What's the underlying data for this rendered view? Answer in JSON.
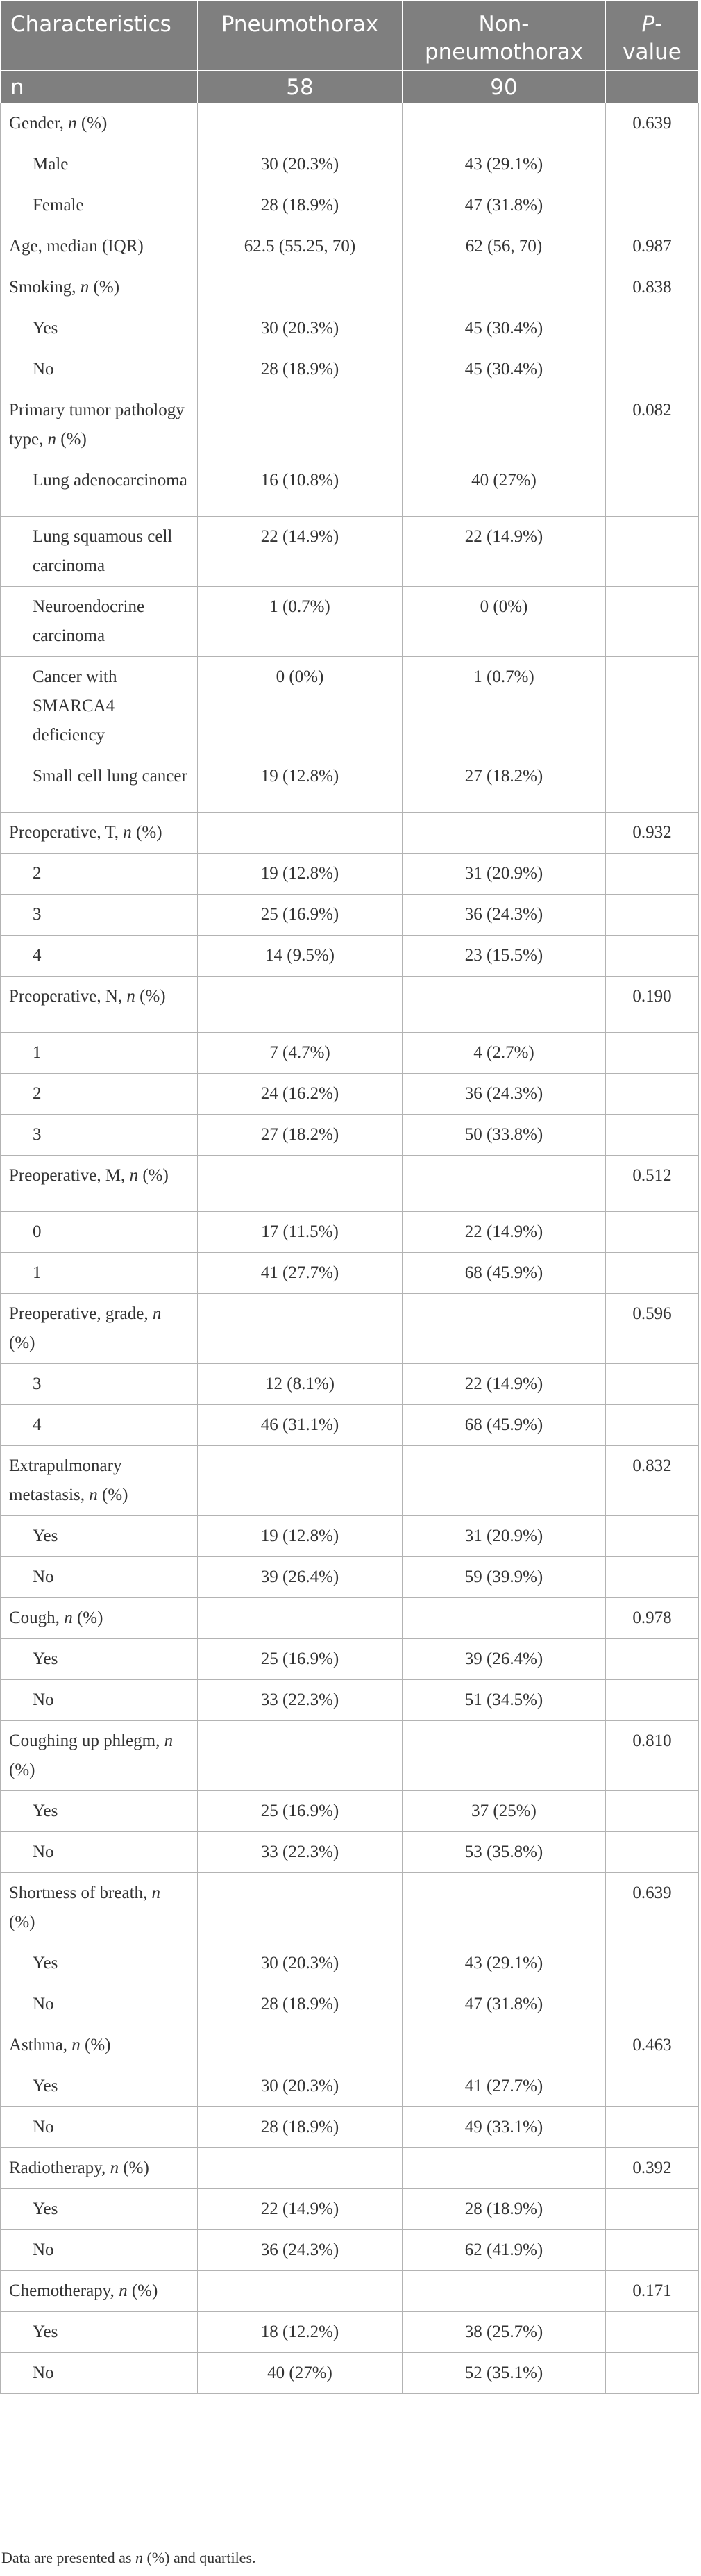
{
  "table": {
    "headers": {
      "characteristics": "Characteristics",
      "pneumothorax": "Pneumothorax",
      "non_pneumothorax": "Non-pneumothorax",
      "p_value_italic": "P",
      "p_value_rest": "-value"
    },
    "n_row": {
      "label": "n",
      "pneumothorax": "58",
      "non_pneumothorax": "90"
    },
    "rows": [
      {
        "type": "group",
        "label": "Gender, ",
        "label_italic": "n",
        "label_suffix": " (%)",
        "pneumothorax": "",
        "non_pneumothorax": "",
        "p": "0.639",
        "height": "r1"
      },
      {
        "type": "sub",
        "label": "Male",
        "pneumothorax": "30 (20.3%)",
        "non_pneumothorax": "43 (29.1%)",
        "p": "",
        "height": "r1"
      },
      {
        "type": "sub",
        "label": "Female",
        "pneumothorax": "28 (18.9%)",
        "non_pneumothorax": "47 (31.8%)",
        "p": "",
        "height": "r1"
      },
      {
        "type": "group",
        "label": "Age, median (IQR)",
        "label_italic": "",
        "label_suffix": "",
        "pneumothorax": "62.5 (55.25, 70)",
        "non_pneumothorax": "62 (56, 70)",
        "p": "0.987",
        "height": "r1"
      },
      {
        "type": "group",
        "label": "Smoking, ",
        "label_italic": "n",
        "label_suffix": " (%)",
        "pneumothorax": "",
        "non_pneumothorax": "",
        "p": "0.838",
        "height": "r1"
      },
      {
        "type": "sub",
        "label": "Yes",
        "pneumothorax": "30 (20.3%)",
        "non_pneumothorax": "45 (30.4%)",
        "p": "",
        "height": "r1"
      },
      {
        "type": "sub",
        "label": "No",
        "pneumothorax": "28 (18.9%)",
        "non_pneumothorax": "45 (30.4%)",
        "p": "",
        "height": "r1"
      },
      {
        "type": "group",
        "label": "Primary tumor pathology type, ",
        "label_italic": "n",
        "label_suffix": " (%)",
        "pneumothorax": "",
        "non_pneumothorax": "",
        "p": "0.082",
        "height": "r2"
      },
      {
        "type": "sub",
        "label": "Lung adenocarcinoma",
        "pneumothorax": "16 (10.8%)",
        "non_pneumothorax": "40 (27%)",
        "p": "",
        "height": "r2"
      },
      {
        "type": "sub",
        "label": "Lung squamous cell carcinoma",
        "pneumothorax": "22 (14.9%)",
        "non_pneumothorax": "22 (14.9%)",
        "p": "",
        "height": "r2"
      },
      {
        "type": "sub",
        "label": "Neuroendocrine carcinoma",
        "pneumothorax": "1 (0.7%)",
        "non_pneumothorax": "0 (0%)",
        "p": "",
        "height": "r2"
      },
      {
        "type": "sub",
        "label": "Cancer with SMARCA4 deficiency",
        "pneumothorax": "0 (0%)",
        "non_pneumothorax": "1 (0.7%)",
        "p": "",
        "height": "r3"
      },
      {
        "type": "sub",
        "label": "Small cell lung cancer",
        "pneumothorax": "19 (12.8%)",
        "non_pneumothorax": "27 (18.2%)",
        "p": "",
        "height": "r2"
      },
      {
        "type": "group",
        "label": "Preoperative, T, ",
        "label_italic": "n",
        "label_suffix": " (%)",
        "pneumothorax": "",
        "non_pneumothorax": "",
        "p": "0.932",
        "height": "r1"
      },
      {
        "type": "sub",
        "label": "2",
        "pneumothorax": "19 (12.8%)",
        "non_pneumothorax": "31 (20.9%)",
        "p": "",
        "height": "r1"
      },
      {
        "type": "sub",
        "label": "3",
        "pneumothorax": "25 (16.9%)",
        "non_pneumothorax": "36 (24.3%)",
        "p": "",
        "height": "r1"
      },
      {
        "type": "sub",
        "label": "4",
        "pneumothorax": "14 (9.5%)",
        "non_pneumothorax": "23 (15.5%)",
        "p": "",
        "height": "r1"
      },
      {
        "type": "group",
        "label": "Preoperative, N, ",
        "label_italic": "n",
        "label_suffix": " (%)",
        "pneumothorax": "",
        "non_pneumothorax": "",
        "p": "0.190",
        "height": "r2"
      },
      {
        "type": "sub",
        "label": "1",
        "pneumothorax": "7 (4.7%)",
        "non_pneumothorax": "4 (2.7%)",
        "p": "",
        "height": "r1"
      },
      {
        "type": "sub",
        "label": "2",
        "pneumothorax": "24 (16.2%)",
        "non_pneumothorax": "36 (24.3%)",
        "p": "",
        "height": "r1"
      },
      {
        "type": "sub",
        "label": "3",
        "pneumothorax": "27 (18.2%)",
        "non_pneumothorax": "50 (33.8%)",
        "p": "",
        "height": "r1"
      },
      {
        "type": "group",
        "label": "Preoperative, M, ",
        "label_italic": "n",
        "label_suffix": " (%)",
        "pneumothorax": "",
        "non_pneumothorax": "",
        "p": "0.512",
        "height": "r2"
      },
      {
        "type": "sub",
        "label": "0",
        "pneumothorax": "17 (11.5%)",
        "non_pneumothorax": "22 (14.9%)",
        "p": "",
        "height": "r1"
      },
      {
        "type": "sub",
        "label": "1",
        "pneumothorax": "41 (27.7%)",
        "non_pneumothorax": "68 (45.9%)",
        "p": "",
        "height": "r1"
      },
      {
        "type": "group",
        "label": "Preoperative, grade, ",
        "label_italic": "n",
        "label_suffix": " (%)",
        "pneumothorax": "",
        "non_pneumothorax": "",
        "p": "0.596",
        "height": "r2"
      },
      {
        "type": "sub",
        "label": "3",
        "pneumothorax": "12 (8.1%)",
        "non_pneumothorax": "22 (14.9%)",
        "p": "",
        "height": "r1"
      },
      {
        "type": "sub",
        "label": "4",
        "pneumothorax": "46 (31.1%)",
        "non_pneumothorax": "68 (45.9%)",
        "p": "",
        "height": "r1"
      },
      {
        "type": "group",
        "label": "Extrapulmonary metastasis, ",
        "label_italic": "n",
        "label_suffix": " (%)",
        "pneumothorax": "",
        "non_pneumothorax": "",
        "p": "0.832",
        "height": "r2"
      },
      {
        "type": "sub",
        "label": "Yes",
        "pneumothorax": "19 (12.8%)",
        "non_pneumothorax": "31 (20.9%)",
        "p": "",
        "height": "r1"
      },
      {
        "type": "sub",
        "label": "No",
        "pneumothorax": "39 (26.4%)",
        "non_pneumothorax": "59 (39.9%)",
        "p": "",
        "height": "r1"
      },
      {
        "type": "group",
        "label": "Cough, ",
        "label_italic": "n",
        "label_suffix": " (%)",
        "pneumothorax": "",
        "non_pneumothorax": "",
        "p": "0.978",
        "height": "r1"
      },
      {
        "type": "sub",
        "label": "Yes",
        "pneumothorax": "25 (16.9%)",
        "non_pneumothorax": "39 (26.4%)",
        "p": "",
        "height": "r1"
      },
      {
        "type": "sub",
        "label": "No",
        "pneumothorax": "33 (22.3%)",
        "non_pneumothorax": "51 (34.5%)",
        "p": "",
        "height": "r1"
      },
      {
        "type": "group",
        "label": "Coughing up phlegm, ",
        "label_italic": "n",
        "label_suffix": " (%)",
        "pneumothorax": "",
        "non_pneumothorax": "",
        "p": "0.810",
        "height": "r2"
      },
      {
        "type": "sub",
        "label": "Yes",
        "pneumothorax": "25 (16.9%)",
        "non_pneumothorax": "37 (25%)",
        "p": "",
        "height": "r1"
      },
      {
        "type": "sub",
        "label": "No",
        "pneumothorax": "33 (22.3%)",
        "non_pneumothorax": "53 (35.8%)",
        "p": "",
        "height": "r1"
      },
      {
        "type": "group",
        "label": "Shortness of breath, ",
        "label_italic": "n",
        "label_suffix": " (%)",
        "pneumothorax": "",
        "non_pneumothorax": "",
        "p": "0.639",
        "height": "r2"
      },
      {
        "type": "sub",
        "label": "Yes",
        "pneumothorax": "30 (20.3%)",
        "non_pneumothorax": "43 (29.1%)",
        "p": "",
        "height": "r1"
      },
      {
        "type": "sub",
        "label": "No",
        "pneumothorax": "28 (18.9%)",
        "non_pneumothorax": "47 (31.8%)",
        "p": "",
        "height": "r1"
      },
      {
        "type": "group",
        "label": "Asthma, ",
        "label_italic": "n",
        "label_suffix": " (%)",
        "pneumothorax": "",
        "non_pneumothorax": "",
        "p": "0.463",
        "height": "r1"
      },
      {
        "type": "sub",
        "label": "Yes",
        "pneumothorax": "30 (20.3%)",
        "non_pneumothorax": "41 (27.7%)",
        "p": "",
        "height": "r1"
      },
      {
        "type": "sub",
        "label": "No",
        "pneumothorax": "28 (18.9%)",
        "non_pneumothorax": "49 (33.1%)",
        "p": "",
        "height": "r1"
      },
      {
        "type": "group",
        "label": "Radiotherapy, ",
        "label_italic": "n",
        "label_suffix": " (%)",
        "pneumothorax": "",
        "non_pneumothorax": "",
        "p": "0.392",
        "height": "r1"
      },
      {
        "type": "sub",
        "label": "Yes",
        "pneumothorax": "22 (14.9%)",
        "non_pneumothorax": "28 (18.9%)",
        "p": "",
        "height": "r1"
      },
      {
        "type": "sub",
        "label": "No",
        "pneumothorax": "36 (24.3%)",
        "non_pneumothorax": "62 (41.9%)",
        "p": "",
        "height": "r1"
      },
      {
        "type": "group",
        "label": "Chemotherapy, ",
        "label_italic": "n",
        "label_suffix": " (%)",
        "pneumothorax": "",
        "non_pneumothorax": "",
        "p": "0.171",
        "height": "r1"
      },
      {
        "type": "sub",
        "label": "Yes",
        "pneumothorax": "18 (12.2%)",
        "non_pneumothorax": "38 (25.7%)",
        "p": "",
        "height": "r1"
      },
      {
        "type": "sub",
        "label": "No",
        "pneumothorax": "40 (27%)",
        "non_pneumothorax": "52 (35.1%)",
        "p": "",
        "height": "r1"
      }
    ],
    "footnote": {
      "prefix": "Data are presented as ",
      "italic": "n",
      "suffix": " (%) and quartiles."
    }
  }
}
